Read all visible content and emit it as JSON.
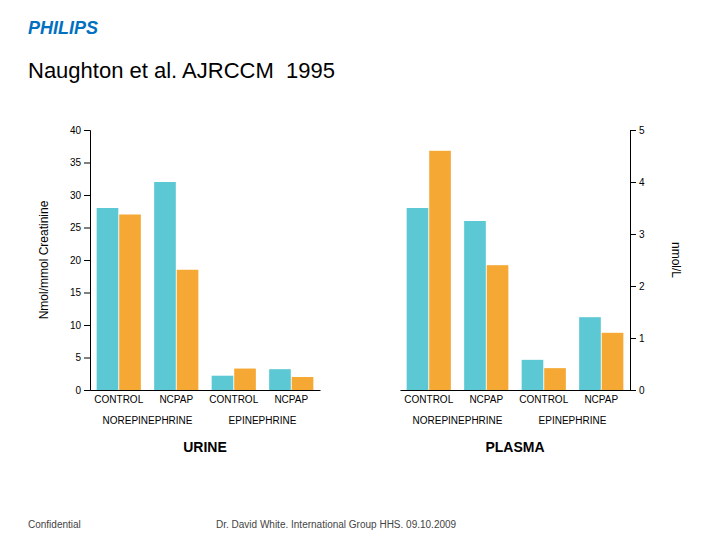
{
  "title": "Naughton et al. AJRCCM  1995",
  "annotations": [
    {
      "text": "PHILIPS",
      "color": "#0070C0"
    },
    {
      "text": "Confidential"
    },
    {
      "text": "Dr. David White. International Group HHS. 09.10.2009"
    }
  ],
  "chart_data": [
    {
      "type": "bar",
      "categories": [
        "CONTROL",
        "NCPAP",
        "CONTROL",
        "NCPAP"
      ],
      "annotations": [
        "NOREPINEPHRINE",
        "EPINEPHRINE"
      ],
      "xlabel": "URINE",
      "ylabel": "Nmol/mmol Creatinine",
      "series": [
        {
          "color": "#5BC8D4",
          "values": [
            28.0,
            32.0,
            2.2,
            3.2
          ]
        },
        {
          "color": "#F5A833",
          "values": [
            27.0,
            18.5,
            3.3,
            2.0
          ]
        }
      ],
      "ylim": [
        0,
        40
      ],
      "yticks": [
        0,
        5,
        10,
        15,
        20,
        25,
        30,
        35,
        40
      ],
      "grid": false
    },
    {
      "type": "bar",
      "categories": [
        "CONTROL",
        "NCPAP",
        "CONTROL",
        "NCPAP"
      ],
      "annotations": [
        "NOREPINEPHRINE",
        "EPINEPHRINE"
      ],
      "xlabel": "PLASMA",
      "ylabel": "nmol/L",
      "series": [
        {
          "color": "#5BC8D4",
          "values": [
            3.5,
            3.25,
            0.58,
            1.4
          ]
        },
        {
          "color": "#F5A833",
          "values": [
            4.6,
            2.4,
            0.42,
            1.1
          ]
        }
      ],
      "ylim": [
        0,
        5
      ],
      "yticks": [
        0,
        1,
        2,
        3,
        4,
        5
      ],
      "grid": false
    }
  ]
}
